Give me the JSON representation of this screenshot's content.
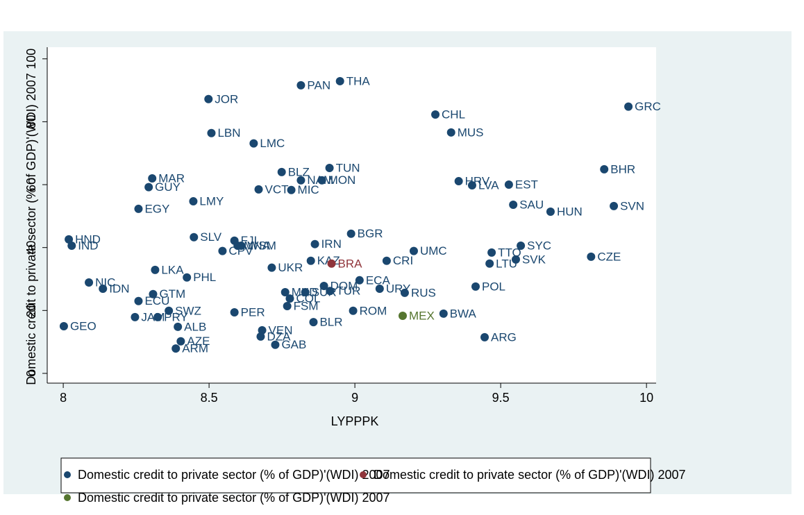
{
  "chart_data": {
    "type": "scatter",
    "x_label": "LYPPPK",
    "y_label": "Domestic credit to private sector (% of GDP)'(WDI) 2007",
    "xlim": [
      7.945,
      10.033
    ],
    "ylim": [
      -3.1,
      103.7
    ],
    "xticks": [
      8,
      8.5,
      9,
      9.5,
      10
    ],
    "yticks": [
      0,
      20,
      40,
      60,
      80,
      100
    ],
    "series": [
      {
        "name": "Domestic credit to private sector (% of GDP)'(WDI) 2007",
        "color": "#1a476f",
        "label_color": "#1a476f",
        "labels": [
          "PAN",
          "THA",
          "JOR",
          "CHL",
          "GRC",
          "MUS",
          "LBN",
          "LMC",
          "TUN",
          "BHR",
          "BLZ",
          "NAM",
          "MON",
          "HRV",
          "LVA",
          "EST",
          "MAR",
          "GUY",
          "VCT",
          "MIC",
          "LMY",
          "SAU",
          "HUN",
          "SVN",
          "EGY",
          "BGR",
          "HND",
          "IND",
          "SLV",
          "FJI",
          "CPV",
          "MNA",
          "WSM",
          "IRN",
          "UMC",
          "SYC",
          "TTO",
          "SVK",
          "LTU",
          "CZE",
          "KAZ",
          "CRI",
          "UKR",
          "LKA",
          "PHL",
          "NIC",
          "IDN",
          "ECA",
          "DOM",
          "URY",
          "RUS",
          "POL",
          "GTM",
          "MKD",
          "SUR",
          "TUR",
          "COL",
          "ECU",
          "FSM",
          "ROM",
          "BWA",
          "SWZ",
          "PER",
          "JAM",
          "PRY",
          "BLR",
          "GEO",
          "ALB",
          "VEN",
          "DZA",
          "ARG",
          "AZE",
          "GAB",
          "ARM"
        ],
        "x": [
          8.815,
          8.949,
          8.498,
          9.276,
          9.938,
          9.33,
          8.508,
          8.653,
          8.913,
          9.855,
          8.749,
          8.815,
          8.887,
          9.356,
          9.402,
          9.528,
          8.305,
          8.293,
          8.67,
          8.782,
          8.446,
          9.543,
          9.671,
          9.888,
          8.258,
          8.987,
          8.019,
          8.029,
          8.448,
          8.587,
          8.546,
          8.598,
          8.61,
          8.863,
          9.202,
          9.569,
          9.469,
          9.552,
          9.462,
          9.81,
          8.849,
          9.109,
          8.715,
          8.315,
          8.424,
          8.088,
          8.136,
          9.016,
          8.894,
          9.085,
          9.171,
          9.414,
          8.308,
          8.761,
          8.83,
          8.915,
          8.777,
          8.258,
          8.768,
          8.994,
          9.304,
          8.362,
          8.587,
          8.246,
          8.324,
          8.858,
          8.002,
          8.393,
          8.682,
          8.677,
          9.445,
          8.403,
          8.727,
          8.386
        ],
        "y": [
          91.6,
          92.9,
          87.2,
          82.3,
          84.8,
          76.6,
          76.4,
          73.1,
          65.3,
          64.9,
          64.0,
          61.4,
          61.4,
          61.1,
          59.8,
          60.0,
          62.0,
          59.2,
          58.5,
          58.3,
          54.7,
          53.6,
          51.4,
          53.2,
          52.3,
          44.4,
          42.6,
          40.6,
          43.3,
          42.2,
          38.9,
          40.6,
          40.6,
          41.1,
          38.9,
          40.6,
          38.4,
          36.2,
          34.9,
          37.1,
          35.8,
          35.8,
          33.6,
          32.9,
          30.5,
          28.9,
          26.9,
          29.6,
          27.8,
          26.9,
          25.6,
          27.6,
          25.2,
          25.8,
          25.8,
          26.2,
          23.8,
          23.0,
          21.4,
          19.9,
          19.0,
          19.9,
          19.4,
          17.9,
          17.9,
          16.3,
          15.0,
          14.8,
          13.7,
          11.7,
          11.5,
          10.2,
          9.1,
          7.9
        ]
      },
      {
        "name": "Domestic credit to private sector (% of GDP)'(WDI) 2007",
        "color": "#90353b",
        "label_color": "#90353b",
        "labels": [
          "BRA"
        ],
        "x": [
          8.92
        ],
        "y": [
          34.9
        ]
      },
      {
        "name": "Domestic credit to private sector (% of GDP)'(WDI) 2007",
        "color": "#55752f",
        "label_color": "#55752f",
        "labels": [
          "MEX"
        ],
        "x": [
          9.164
        ],
        "y": [
          18.3
        ]
      }
    ]
  }
}
